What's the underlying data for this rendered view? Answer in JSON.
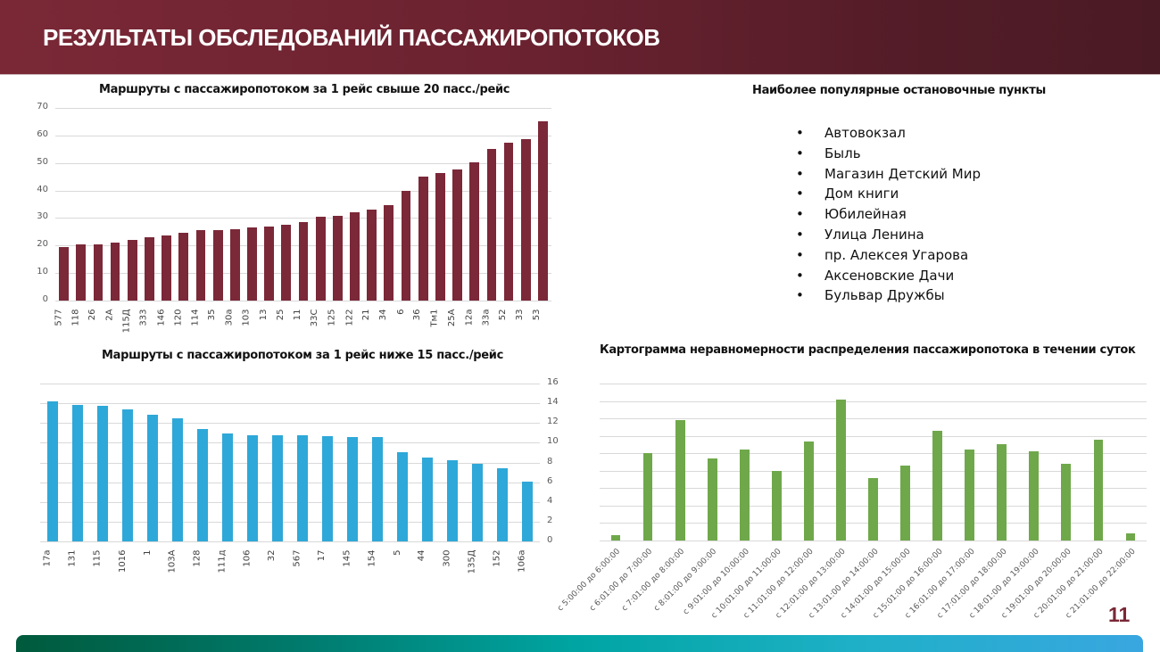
{
  "header": {
    "title": "РЕЗУЛЬТАТЫ ОБСЛЕДОВАНИЙ ПАССАЖИРОПОТОКОВ"
  },
  "stops": {
    "title": "Наиболее популярные остановочные пункты",
    "bullet": "•",
    "items": [
      "Автовокзал",
      "Быль",
      "Магазин Детский Мир",
      "Дом книги",
      "Юбилейная",
      "Улица Ленина",
      "пр. Алексея Угарова",
      "Аксеновские Дачи",
      "Бульвар Дружбы"
    ]
  },
  "page_number": "11",
  "colors": {
    "header": "#7a2836",
    "maroon_bars": "#7b2838",
    "blue_bars": "#2ea8d8",
    "green_bars": "#6fa84a",
    "page_number": "#7a2836"
  },
  "chart_data": [
    {
      "type": "bar",
      "title": "Маршруты с пассажиропотоком за 1 рейс свыше 20 пасс./рейс",
      "xlabel": "",
      "ylabel": "",
      "ylim": [
        0,
        70
      ],
      "yticks": [
        0,
        10,
        20,
        30,
        40,
        50,
        60,
        70
      ],
      "grid": true,
      "legend": null,
      "categories": [
        "577",
        "118",
        "26",
        "2А",
        "115Д",
        "333",
        "146",
        "120",
        "114",
        "35",
        "30а",
        "103",
        "13",
        "25",
        "11",
        "33С",
        "125",
        "122",
        "21",
        "34",
        "6",
        "36",
        "Тм1",
        "25А",
        "12а",
        "33а",
        "52",
        "33",
        "53"
      ],
      "values": [
        19.5,
        20.4,
        20.4,
        21,
        22,
        23,
        23.7,
        24.6,
        25.7,
        25.7,
        25.9,
        26.6,
        26.9,
        27.5,
        28.5,
        30.5,
        30.8,
        32.1,
        33,
        34.7,
        39.8,
        45,
        46.3,
        47.5,
        50.2,
        55,
        57.4,
        58.8,
        65
      ]
    },
    {
      "type": "bar",
      "title": "Маршруты с пассажиропотоком за 1 рейс ниже 15 пасс./рейс",
      "xlabel": "",
      "ylabel": "",
      "ylim": [
        0,
        16
      ],
      "yticks": [
        0,
        2,
        4,
        6,
        8,
        10,
        12,
        14,
        16
      ],
      "yaxis_position": "right",
      "grid": true,
      "legend": null,
      "categories": [
        "17а",
        "131",
        "115",
        "1016",
        "1",
        "103А",
        "128",
        "111д",
        "106",
        "32",
        "567",
        "17",
        "145",
        "154",
        "5",
        "44",
        "300",
        "135Д",
        "152",
        "106а"
      ],
      "values": [
        14.2,
        13.8,
        13.7,
        13.4,
        12.8,
        12.5,
        11.4,
        10.9,
        10.8,
        10.8,
        10.8,
        10.7,
        10.6,
        10.6,
        9.0,
        8.5,
        8.2,
        7.9,
        7.4,
        6.1
      ]
    },
    {
      "type": "bar",
      "title": "Картограмма неравномерности распределения пассажиропотока в течении суток",
      "xlabel": "",
      "ylabel": "",
      "ylim": [
        0,
        9
      ],
      "yticks": [],
      "y_units": "gridline intervals (no tick labels shown)",
      "grid": true,
      "legend": null,
      "categories": [
        "с 5:00:00 до 6:00:00",
        "с 6:01:00 до 7:00:00",
        "с 7:01:00 до 8:00:00",
        "с 8:01:00 до 9:00:00",
        "с 9:01:00 до 10:00:00",
        "с 10:01:00 до 11:00:00",
        "с 11:01:00 до 12:00:00",
        "с 12:01:00 до 13:00:00",
        "с 13:01:00 до 14:00:00",
        "с 14:01:00 до 15:00:00",
        "с 15:01:00 до 16:00:00",
        "с 16:01:00 до 17:00:00",
        "с 17:01:00 до 18:00:00",
        "с 18:01:00 до 19:00:00",
        "с 19:01:00 до 20:00:00",
        "с 20:01:00 до 21:00:00",
        "с 21:01:00 до 22:00:00"
      ],
      "values": [
        0.3,
        5.0,
        6.9,
        4.7,
        5.2,
        4.0,
        5.7,
        8.1,
        3.6,
        4.3,
        6.3,
        5.2,
        5.5,
        5.1,
        4.4,
        5.8,
        0.4
      ]
    }
  ]
}
